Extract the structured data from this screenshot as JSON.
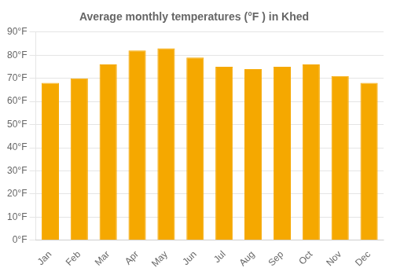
{
  "chart_data": {
    "type": "bar",
    "title": "Average monthly temperatures (°F ) in Khed",
    "categories": [
      "Jan",
      "Feb",
      "Mar",
      "Apr",
      "May",
      "Jun",
      "Jul",
      "Aug",
      "Sep",
      "Oct",
      "Nov",
      "Dec"
    ],
    "values": [
      68,
      70,
      76,
      82,
      83,
      79,
      75,
      74,
      75,
      76,
      71,
      68
    ],
    "color": "#F5A800",
    "ylim": [
      0,
      90
    ],
    "yticks": [
      {
        "value": 0,
        "label": "0°F"
      },
      {
        "value": 10,
        "label": "10°F"
      },
      {
        "value": 20,
        "label": "20°F"
      },
      {
        "value": 30,
        "label": "30°F"
      },
      {
        "value": 40,
        "label": "40°F"
      },
      {
        "value": 50,
        "label": "50°F"
      },
      {
        "value": 60,
        "label": "60°F"
      },
      {
        "value": 70,
        "label": "70°F"
      },
      {
        "value": 80,
        "label": "80°F"
      },
      {
        "value": 90,
        "label": "90°F"
      }
    ],
    "grid": true
  }
}
